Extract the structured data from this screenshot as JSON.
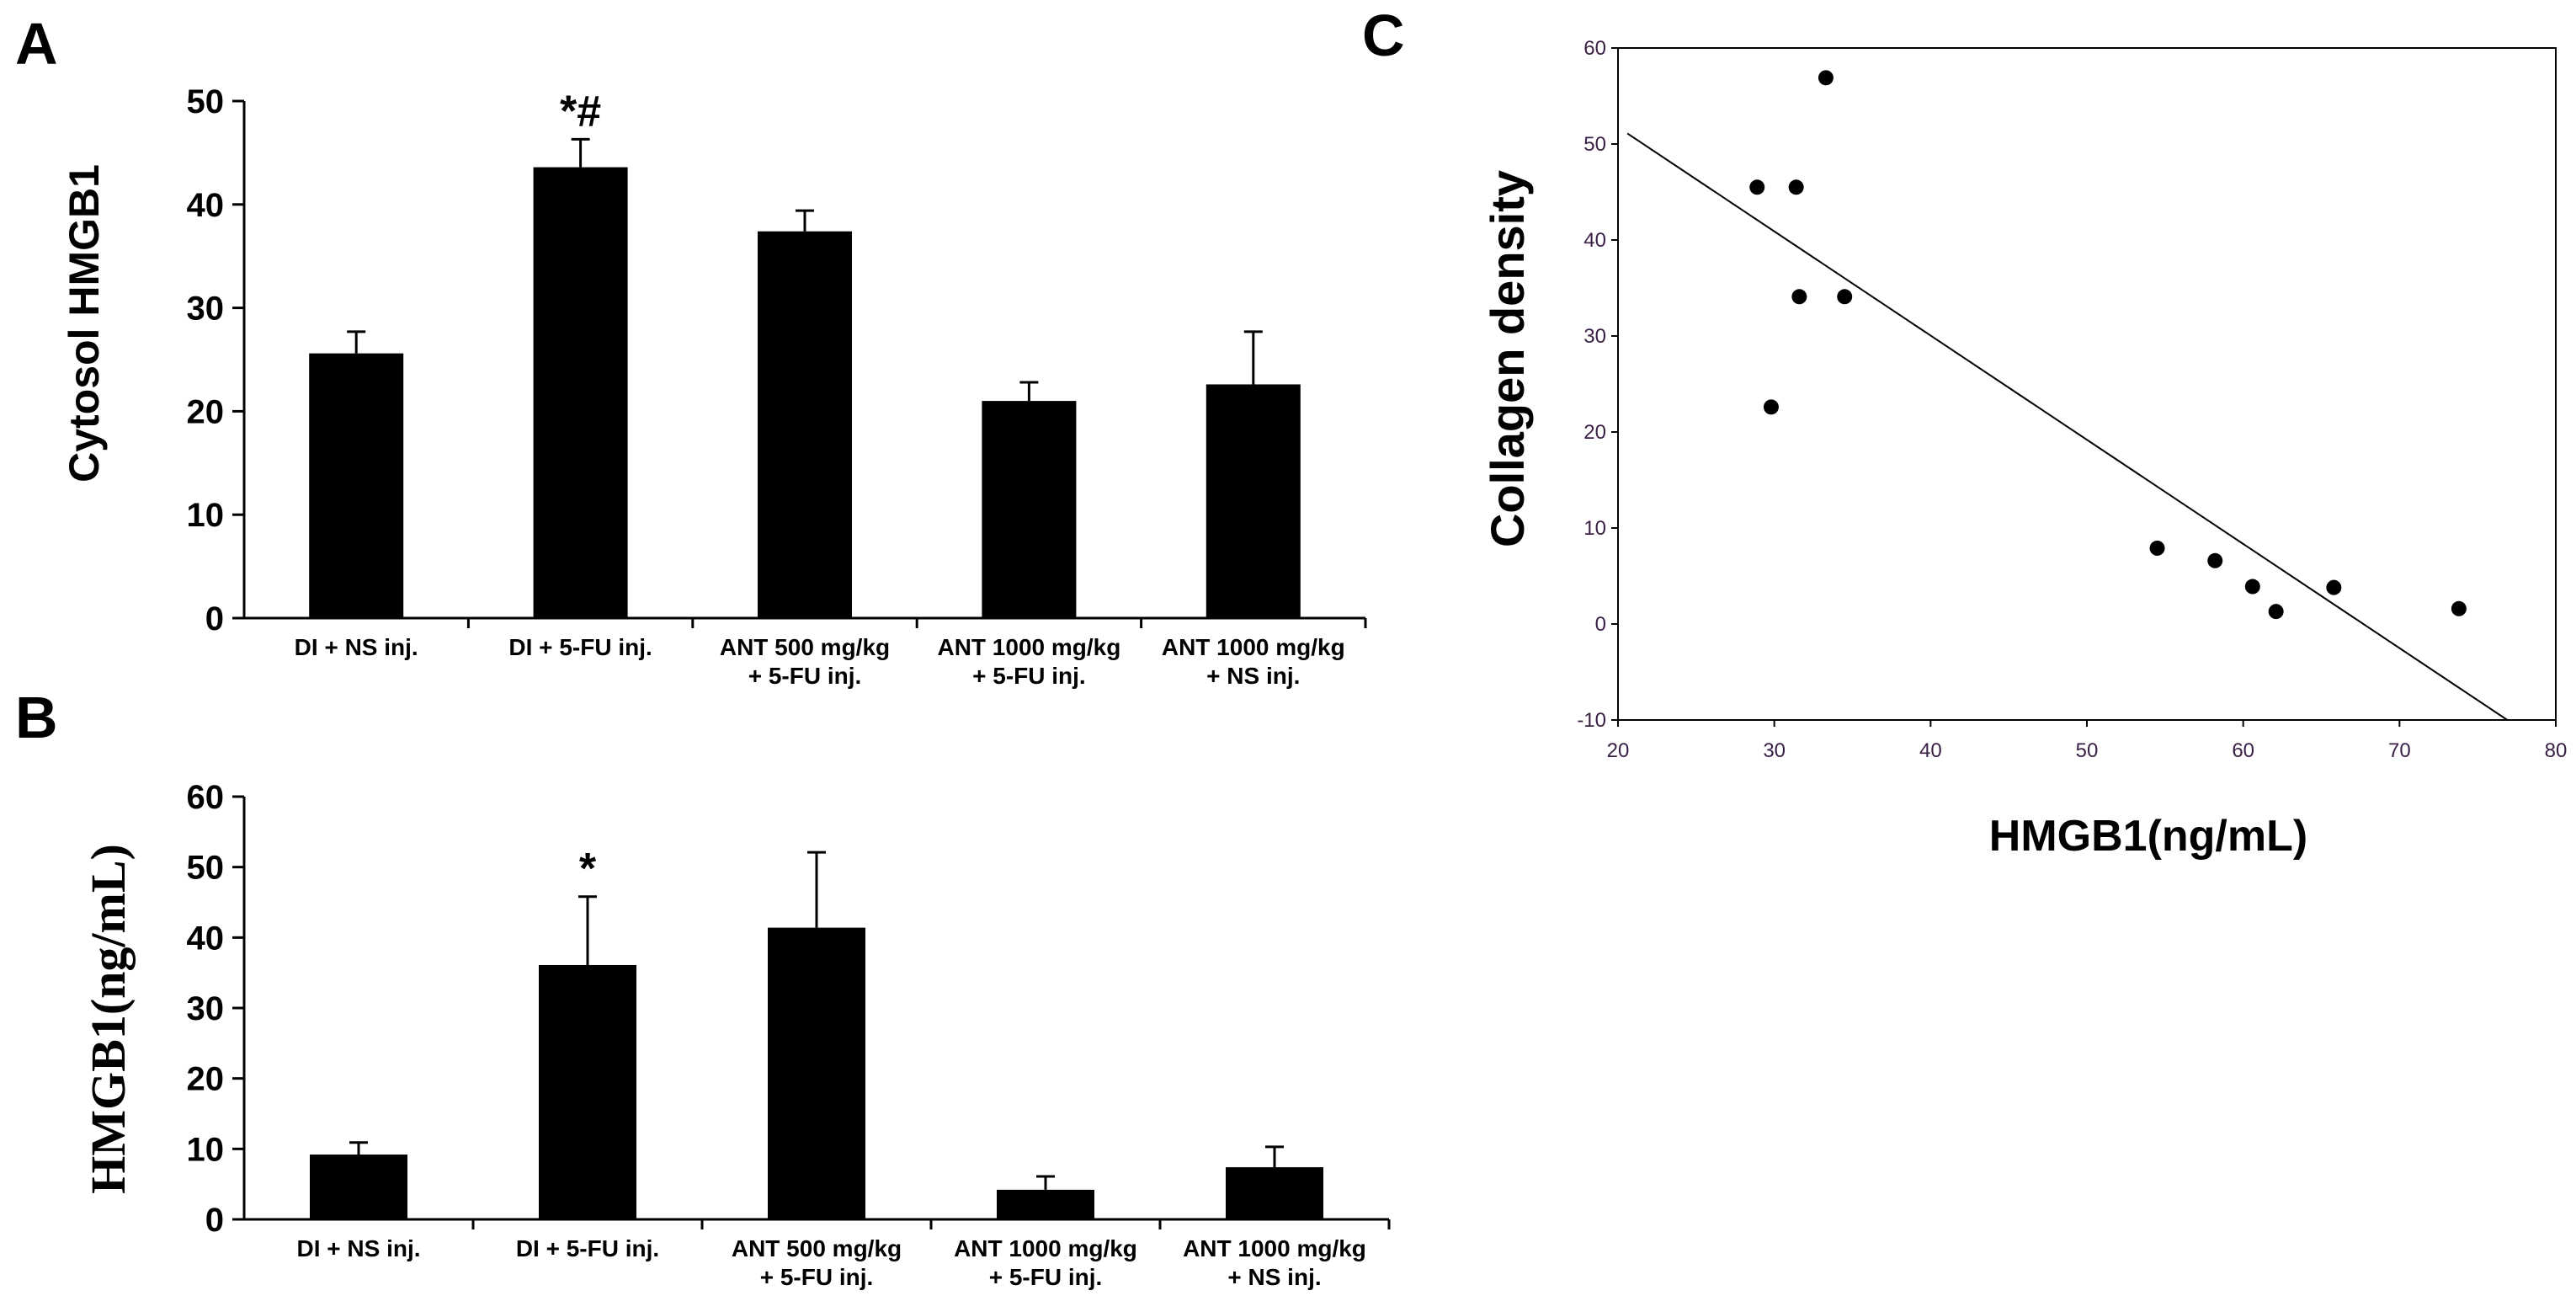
{
  "chart_data": [
    {
      "panel": "A",
      "type": "bar",
      "ylabel": "Cytosol HMGB1",
      "xlabel": "",
      "ylim": [
        0,
        50
      ],
      "yticks": [
        "0",
        "10",
        "20",
        "30",
        "40",
        "50"
      ],
      "categories": [
        [
          "DI + NS inj."
        ],
        [
          "DI  + 5-FU inj."
        ],
        [
          "ANT 500 mg/kg",
          "+ 5-FU inj."
        ],
        [
          "ANT 1000 mg/kg",
          "+ 5-FU inj."
        ],
        [
          "ANT 1000 mg/kg",
          "+ NS inj."
        ]
      ],
      "values": [
        25.6,
        43.6,
        37.4,
        21.0,
        22.6
      ],
      "errors": [
        2.1,
        2.7,
        2.0,
        1.8,
        5.1
      ],
      "annotations": [
        "",
        "*#",
        "",
        "",
        ""
      ]
    },
    {
      "panel": "B",
      "type": "bar",
      "ylabel": "HMGB1(ng/mL)",
      "xlabel": "",
      "ylim": [
        0,
        60
      ],
      "yticks": [
        "0",
        "10",
        "20",
        "30",
        "40",
        "50",
        "60"
      ],
      "categories": [
        [
          "DI + NS inj."
        ],
        [
          "DI  + 5-FU inj."
        ],
        [
          "ANT 500 mg/kg",
          "+ 5-FU inj."
        ],
        [
          "ANT 1000 mg/kg",
          "+ 5-FU inj."
        ],
        [
          "ANT 1000 mg/kg",
          "+ NS inj."
        ]
      ],
      "values": [
        9.2,
        36.1,
        41.4,
        4.2,
        7.4
      ],
      "errors": [
        1.7,
        9.7,
        10.7,
        1.9,
        2.9
      ],
      "annotations": [
        "",
        "*",
        "",
        "",
        ""
      ]
    },
    {
      "panel": "C",
      "type": "scatter",
      "xlabel": "HMGB1(ng/mL)",
      "ylabel": "Collagen density",
      "xlim": [
        20,
        80
      ],
      "ylim": [
        -10,
        60
      ],
      "xticks": [
        "20",
        "30",
        "40",
        "50",
        "60",
        "70",
        "80"
      ],
      "yticks": [
        "-10",
        "0",
        "10",
        "20",
        "30",
        "40",
        "50",
        "60"
      ],
      "x": [
        28.9,
        29.8,
        31.4,
        31.6,
        33.3,
        34.5,
        54.5,
        58.2,
        60.6,
        62.1,
        65.8,
        73.8
      ],
      "y": [
        45.5,
        22.6,
        45.5,
        34.1,
        56.9,
        34.1,
        7.9,
        6.6,
        3.9,
        1.3,
        3.8,
        1.6
      ],
      "trendline": {
        "x": [
          20.6,
          76.9
        ],
        "y": [
          51.1,
          -10.0
        ]
      }
    }
  ]
}
